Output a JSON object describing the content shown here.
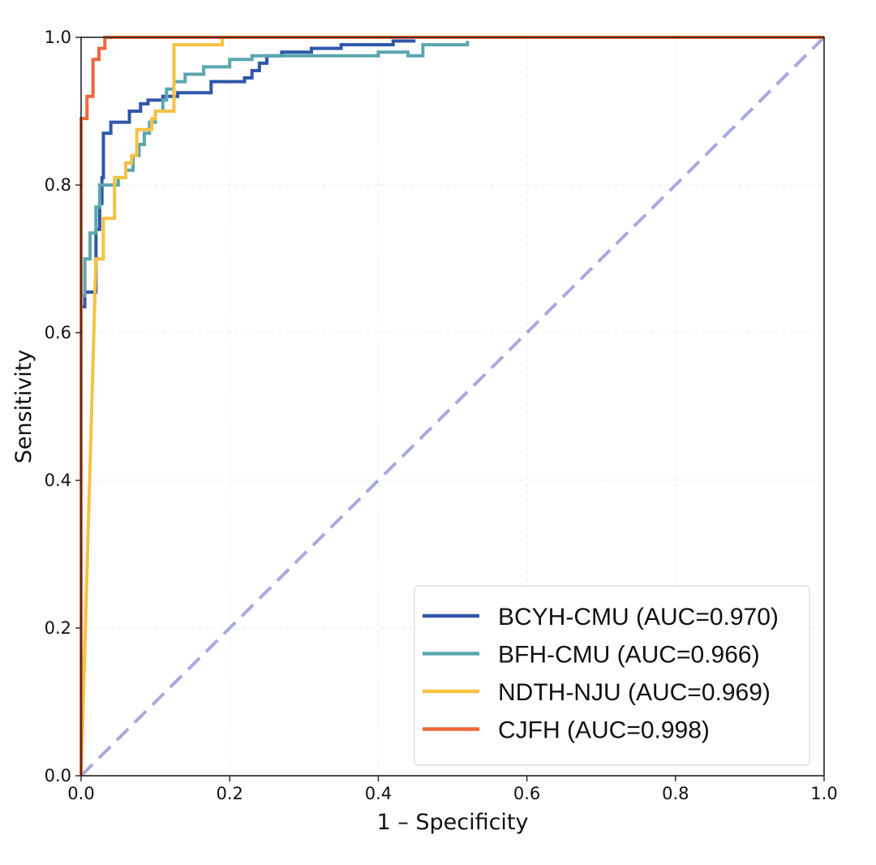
{
  "chart_data": {
    "type": "line",
    "title": "",
    "xlabel": "1 – Specificity",
    "ylabel": "Sensitivity",
    "xlim": [
      0.0,
      1.0
    ],
    "ylim": [
      0.0,
      1.0
    ],
    "grid": true,
    "legend_position": "lower-right",
    "x_ticks": [
      "0.0",
      "0.2",
      "0.4",
      "0.6",
      "0.8",
      "1.0"
    ],
    "y_ticks": [
      "0.0",
      "0.2",
      "0.4",
      "0.6",
      "0.8",
      "1.0"
    ],
    "reference_line": {
      "name": "chance",
      "points": [
        [
          0.0,
          0.0
        ],
        [
          1.0,
          1.0
        ]
      ],
      "color": "#a9a9e0",
      "style": "dashed"
    },
    "series": [
      {
        "name": "BCYH-CMU",
        "label": "BCYH-CMU (AUC=0.970)",
        "auc": 0.97,
        "color": "#2f56a8",
        "points": [
          [
            0,
            0
          ],
          [
            0,
            0.635
          ],
          [
            0.005,
            0.635
          ],
          [
            0.005,
            0.655
          ],
          [
            0.02,
            0.655
          ],
          [
            0.02,
            0.74
          ],
          [
            0.025,
            0.74
          ],
          [
            0.025,
            0.775
          ],
          [
            0.028,
            0.775
          ],
          [
            0.028,
            0.81
          ],
          [
            0.03,
            0.81
          ],
          [
            0.03,
            0.87
          ],
          [
            0.04,
            0.87
          ],
          [
            0.04,
            0.885
          ],
          [
            0.065,
            0.885
          ],
          [
            0.065,
            0.9
          ],
          [
            0.08,
            0.9
          ],
          [
            0.08,
            0.91
          ],
          [
            0.09,
            0.91
          ],
          [
            0.09,
            0.915
          ],
          [
            0.11,
            0.915
          ],
          [
            0.11,
            0.92
          ],
          [
            0.13,
            0.92
          ],
          [
            0.13,
            0.925
          ],
          [
            0.175,
            0.925
          ],
          [
            0.175,
            0.94
          ],
          [
            0.22,
            0.94
          ],
          [
            0.22,
            0.945
          ],
          [
            0.23,
            0.945
          ],
          [
            0.23,
            0.955
          ],
          [
            0.24,
            0.955
          ],
          [
            0.24,
            0.965
          ],
          [
            0.25,
            0.965
          ],
          [
            0.25,
            0.975
          ],
          [
            0.27,
            0.975
          ],
          [
            0.27,
            0.98
          ],
          [
            0.31,
            0.98
          ],
          [
            0.31,
            0.985
          ],
          [
            0.35,
            0.985
          ],
          [
            0.35,
            0.99
          ],
          [
            0.42,
            0.99
          ],
          [
            0.42,
            0.995
          ],
          [
            0.45,
            0.995
          ]
        ]
      },
      {
        "name": "BFH-CMU",
        "label": "BFH-CMU (AUC=0.966)",
        "auc": 0.966,
        "color": "#5aa7b0",
        "points": [
          [
            0,
            0
          ],
          [
            0,
            0.65
          ],
          [
            0.005,
            0.65
          ],
          [
            0.005,
            0.7
          ],
          [
            0.012,
            0.7
          ],
          [
            0.012,
            0.735
          ],
          [
            0.02,
            0.735
          ],
          [
            0.02,
            0.77
          ],
          [
            0.025,
            0.77
          ],
          [
            0.025,
            0.8
          ],
          [
            0.05,
            0.8
          ],
          [
            0.05,
            0.81
          ],
          [
            0.06,
            0.81
          ],
          [
            0.06,
            0.82
          ],
          [
            0.07,
            0.82
          ],
          [
            0.07,
            0.84
          ],
          [
            0.078,
            0.84
          ],
          [
            0.078,
            0.855
          ],
          [
            0.085,
            0.855
          ],
          [
            0.085,
            0.87
          ],
          [
            0.092,
            0.87
          ],
          [
            0.092,
            0.885
          ],
          [
            0.1,
            0.885
          ],
          [
            0.1,
            0.9
          ],
          [
            0.11,
            0.9
          ],
          [
            0.11,
            0.915
          ],
          [
            0.115,
            0.915
          ],
          [
            0.115,
            0.93
          ],
          [
            0.125,
            0.93
          ],
          [
            0.125,
            0.94
          ],
          [
            0.14,
            0.94
          ],
          [
            0.14,
            0.95
          ],
          [
            0.165,
            0.95
          ],
          [
            0.165,
            0.96
          ],
          [
            0.2,
            0.96
          ],
          [
            0.2,
            0.97
          ],
          [
            0.23,
            0.97
          ],
          [
            0.23,
            0.975
          ],
          [
            0.4,
            0.975
          ],
          [
            0.4,
            0.98
          ],
          [
            0.44,
            0.98
          ],
          [
            0.44,
            0.975
          ],
          [
            0.46,
            0.975
          ],
          [
            0.46,
            0.99
          ],
          [
            0.52,
            0.99
          ],
          [
            0.52,
            0.995
          ]
        ]
      },
      {
        "name": "NDTH-NJU",
        "label": "NDTH-NJU (AUC=0.969)",
        "auc": 0.969,
        "color": "#f5c242",
        "points": [
          [
            0,
            0
          ],
          [
            0.02,
            0.7
          ],
          [
            0.03,
            0.7
          ],
          [
            0.03,
            0.755
          ],
          [
            0.045,
            0.755
          ],
          [
            0.045,
            0.81
          ],
          [
            0.06,
            0.81
          ],
          [
            0.06,
            0.83
          ],
          [
            0.068,
            0.83
          ],
          [
            0.068,
            0.84
          ],
          [
            0.075,
            0.84
          ],
          [
            0.075,
            0.875
          ],
          [
            0.095,
            0.875
          ],
          [
            0.095,
            0.89
          ],
          [
            0.1,
            0.89
          ],
          [
            0.1,
            0.9
          ],
          [
            0.125,
            0.9
          ],
          [
            0.125,
            0.905
          ],
          [
            0.125,
            0.99
          ],
          [
            0.19,
            0.99
          ],
          [
            0.19,
            1.0
          ]
        ]
      },
      {
        "name": "CJFH",
        "label": "CJFH (AUC=0.998)",
        "auc": 0.998,
        "color": "#f0663a",
        "points": [
          [
            0,
            0
          ],
          [
            0,
            0.89
          ],
          [
            0.008,
            0.89
          ],
          [
            0.008,
            0.92
          ],
          [
            0.016,
            0.92
          ],
          [
            0.016,
            0.97
          ],
          [
            0.024,
            0.97
          ],
          [
            0.024,
            0.985
          ],
          [
            0.032,
            0.985
          ],
          [
            0.032,
            1.0
          ],
          [
            1.0,
            1.0
          ]
        ]
      }
    ]
  }
}
